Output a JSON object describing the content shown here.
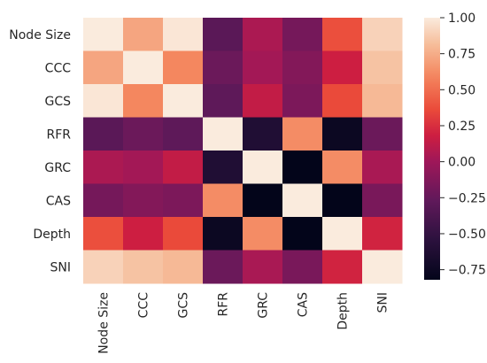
{
  "chart_data": {
    "type": "heatmap",
    "title": "",
    "xlabel": "",
    "ylabel": "",
    "x_categories": [
      "Node Size",
      "CCC",
      "GCS",
      "RFR",
      "GRC",
      "CAS",
      "Depth",
      "SNI"
    ],
    "y_categories": [
      "Node Size",
      "CCC",
      "GCS",
      "RFR",
      "GRC",
      "CAS",
      "Depth",
      "SNI"
    ],
    "values": [
      [
        1.0,
        0.72,
        0.98,
        -0.3,
        0.05,
        -0.18,
        0.38,
        0.9
      ],
      [
        0.72,
        1.0,
        0.6,
        -0.22,
        0.02,
        -0.12,
        0.18,
        0.84
      ],
      [
        0.98,
        0.6,
        1.0,
        -0.28,
        0.14,
        -0.15,
        0.36,
        0.8
      ],
      [
        -0.3,
        -0.22,
        -0.28,
        1.0,
        -0.62,
        0.62,
        -0.76,
        -0.22
      ],
      [
        0.05,
        0.02,
        0.14,
        -0.62,
        1.0,
        -0.84,
        0.62,
        0.04
      ],
      [
        -0.18,
        -0.12,
        -0.15,
        0.62,
        -0.84,
        1.0,
        -0.82,
        -0.16
      ],
      [
        0.38,
        0.18,
        0.36,
        -0.76,
        0.62,
        -0.82,
        1.0,
        0.2
      ],
      [
        0.9,
        0.84,
        0.8,
        -0.22,
        0.04,
        -0.16,
        0.2,
        1.0
      ]
    ],
    "colorbar": {
      "min": -0.82,
      "max": 1.0,
      "ticks": [
        1.0,
        0.75,
        0.5,
        0.25,
        0.0,
        -0.25,
        -0.5,
        -0.75
      ],
      "tick_labels": [
        "1.00",
        "0.75",
        "0.50",
        "0.25",
        "0.00",
        "−0.25",
        "−0.50",
        "−0.75"
      ]
    },
    "colormap": "rocket"
  }
}
